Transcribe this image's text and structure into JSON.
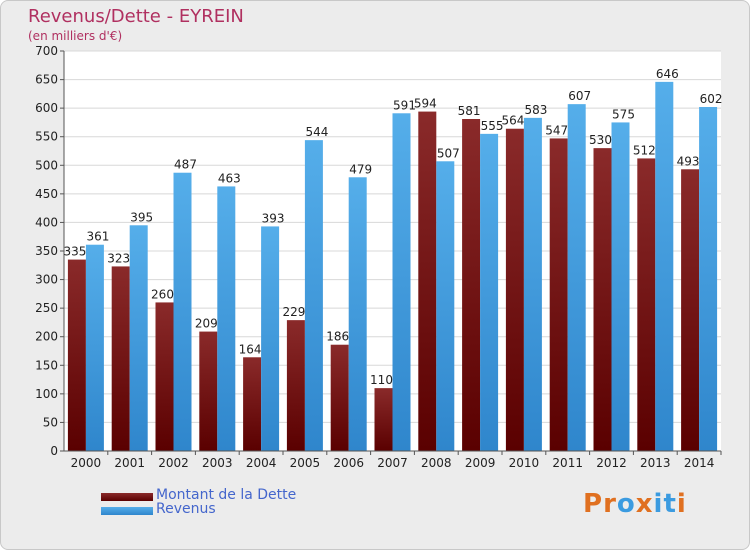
{
  "title": "Revenus/Dette - EYREIN",
  "subtitle": "(en milliers d'€)",
  "colors": {
    "background": "#ececec",
    "title": "#b03060",
    "dette": "#7a1414",
    "revenus": "#3b9be0",
    "legend_text": "#4466cc"
  },
  "legend": {
    "dette_label": "Montant de la Dette",
    "revenus_label": "Revenus"
  },
  "logo": {
    "text": "Proxiti",
    "letter_colors": [
      "#e07020",
      "#e07020",
      "#3b9be0",
      "#e07020",
      "#3b9be0",
      "#3b9be0",
      "#e07020"
    ]
  },
  "chart_data": {
    "type": "bar",
    "categories": [
      "2000",
      "2001",
      "2002",
      "2003",
      "2004",
      "2005",
      "2006",
      "2007",
      "2008",
      "2009",
      "2010",
      "2011",
      "2012",
      "2013",
      "2014"
    ],
    "series": [
      {
        "name": "Montant de la Dette",
        "values": [
          335,
          323,
          260,
          209,
          164,
          229,
          186,
          110,
          594,
          581,
          564,
          547,
          530,
          512,
          493
        ]
      },
      {
        "name": "Revenus",
        "values": [
          361,
          395,
          487,
          463,
          393,
          544,
          479,
          591,
          507,
          555,
          583,
          607,
          575,
          646,
          602
        ]
      }
    ],
    "y_ticks": [
      "0",
      "50",
      "100",
      "150",
      "200",
      "250",
      "300",
      "350",
      "400",
      "450",
      "500",
      "550",
      "600",
      "650",
      "700"
    ],
    "ylim": [
      0,
      700
    ],
    "grid": true,
    "legend_position": "bottom-left"
  }
}
